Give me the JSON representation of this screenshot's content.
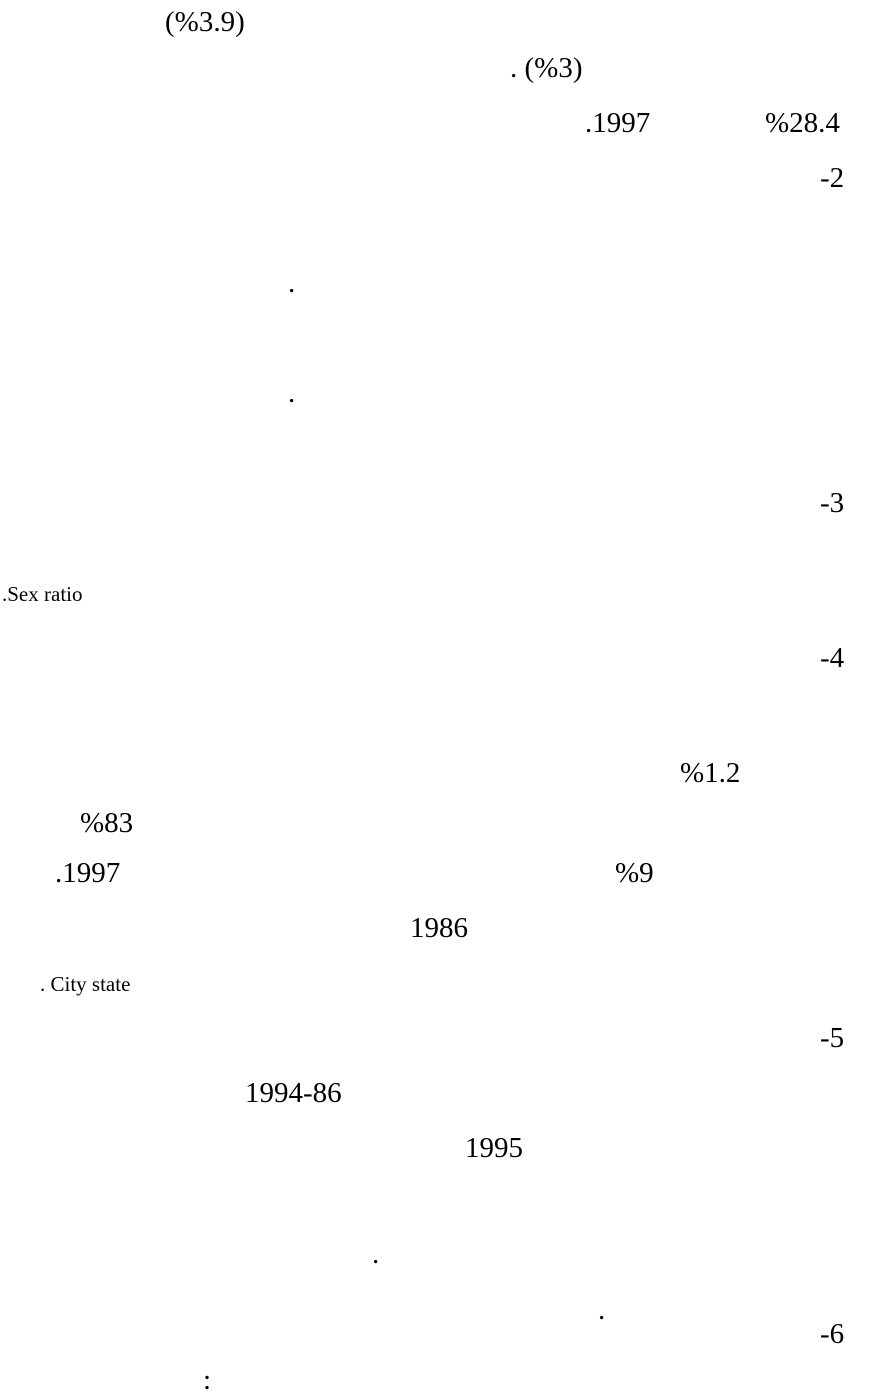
{
  "lines": [
    {
      "fragments": [
        "(%3.9)"
      ]
    },
    {
      "fragments": [
        ". (%3)"
      ]
    },
    {
      "fragments": [
        ".1997",
        "%28.4"
      ]
    },
    {
      "fragments": [
        "-2"
      ]
    },
    {
      "fragments": [
        "."
      ]
    },
    {
      "fragments": [
        "."
      ]
    },
    {
      "fragments": [
        "-3"
      ]
    },
    {
      "fragments": [
        ".Sex ratio"
      ]
    },
    {
      "fragments": [
        "-4"
      ]
    },
    {
      "fragments": [
        "%1.2"
      ]
    },
    {
      "fragments": [
        "%83"
      ]
    },
    {
      "fragments": [
        ".1997",
        "%9"
      ]
    },
    {
      "fragments": [
        "1986"
      ]
    },
    {
      "fragments": [
        ". City state"
      ]
    },
    {
      "fragments": [
        "-5"
      ]
    },
    {
      "fragments": [
        "1994-86"
      ]
    },
    {
      "fragments": [
        "1995"
      ]
    },
    {
      "fragments": [
        "."
      ]
    },
    {
      "fragments": [
        "."
      ]
    },
    {
      "fragments": [
        "-6"
      ]
    },
    {
      "fragments": [
        ":"
      ]
    }
  ]
}
